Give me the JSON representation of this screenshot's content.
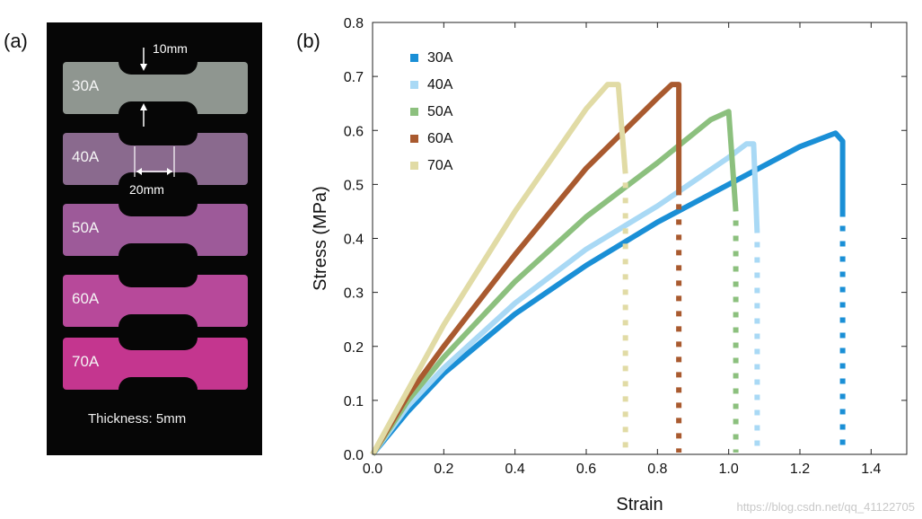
{
  "panels": {
    "a_label": "(a)",
    "b_label": "(b)"
  },
  "photo": {
    "specimens": [
      {
        "label": "30A",
        "color": "#8f9690"
      },
      {
        "label": "40A",
        "color": "#8a6a8e"
      },
      {
        "label": "50A",
        "color": "#9d5a99"
      },
      {
        "label": "60A",
        "color": "#b7499a"
      },
      {
        "label": "70A",
        "color": "#c4368f"
      }
    ],
    "width_dim": "10mm",
    "length_dim": "20mm",
    "thickness": "Thickness: 5mm"
  },
  "chart_data": {
    "type": "line",
    "xlabel": "Strain",
    "ylabel": "Stress (MPa)",
    "xlim": [
      0.0,
      1.5
    ],
    "ylim": [
      0.0,
      0.8
    ],
    "xticks": [
      "0.0",
      "0.2",
      "0.4",
      "0.6",
      "0.8",
      "1.0",
      "1.2",
      "1.4"
    ],
    "yticks": [
      "0.0",
      "0.1",
      "0.2",
      "0.3",
      "0.4",
      "0.5",
      "0.6",
      "0.7",
      "0.8"
    ],
    "grid": false,
    "legend_position": "top-left",
    "series": [
      {
        "name": "30A",
        "color": "#1a8fd6",
        "x": [
          0.0,
          0.1,
          0.2,
          0.4,
          0.6,
          0.8,
          1.0,
          1.2,
          1.3,
          1.32,
          1.32
        ],
        "y": [
          0.0,
          0.08,
          0.15,
          0.26,
          0.35,
          0.43,
          0.5,
          0.57,
          0.595,
          0.58,
          0.44
        ],
        "failure_x": 1.32
      },
      {
        "name": "40A",
        "color": "#a9d9f5",
        "x": [
          0.0,
          0.1,
          0.2,
          0.4,
          0.6,
          0.8,
          1.0,
          1.05,
          1.07,
          1.08
        ],
        "y": [
          0.0,
          0.09,
          0.16,
          0.28,
          0.38,
          0.46,
          0.55,
          0.575,
          0.575,
          0.41
        ],
        "failure_x": 1.08
      },
      {
        "name": "50A",
        "color": "#8cc07e",
        "x": [
          0.0,
          0.1,
          0.2,
          0.4,
          0.6,
          0.8,
          0.95,
          1.0,
          1.02
        ],
        "y": [
          0.0,
          0.1,
          0.18,
          0.32,
          0.44,
          0.54,
          0.62,
          0.635,
          0.45
        ],
        "failure_x": 1.02
      },
      {
        "name": "60A",
        "color": "#a95a2f",
        "x": [
          0.0,
          0.1,
          0.2,
          0.4,
          0.6,
          0.8,
          0.84,
          0.86,
          0.86
        ],
        "y": [
          0.0,
          0.11,
          0.2,
          0.37,
          0.53,
          0.66,
          0.685,
          0.685,
          0.48
        ],
        "failure_x": 0.86
      },
      {
        "name": "70A",
        "color": "#e1dba5",
        "x": [
          0.0,
          0.1,
          0.2,
          0.4,
          0.6,
          0.66,
          0.69,
          0.71
        ],
        "y": [
          0.0,
          0.12,
          0.24,
          0.45,
          0.64,
          0.685,
          0.685,
          0.52
        ],
        "failure_x": 0.71
      }
    ]
  },
  "watermark": "https://blog.csdn.net/qq_41122705"
}
